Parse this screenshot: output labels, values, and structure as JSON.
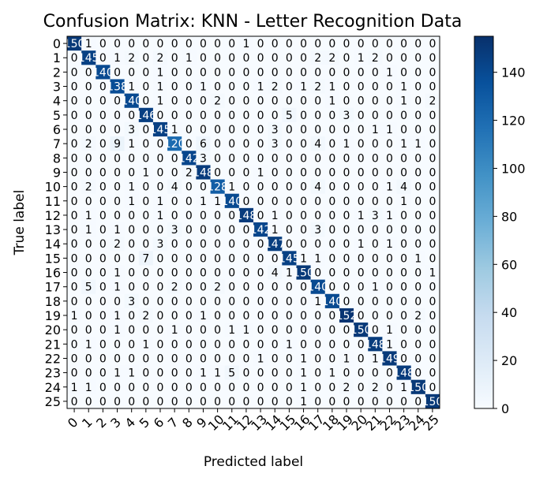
{
  "chart_data": {
    "type": "heatmap",
    "title": "Confusion Matrix: KNN - Letter Recognition Data",
    "xlabel": "Predicted label",
    "ylabel": "True label",
    "labels": [
      "0",
      "1",
      "2",
      "3",
      "4",
      "5",
      "6",
      "7",
      "8",
      "9",
      "10",
      "11",
      "12",
      "13",
      "14",
      "15",
      "16",
      "17",
      "18",
      "19",
      "20",
      "21",
      "22",
      "23",
      "24",
      "25"
    ],
    "colormap": "Blues",
    "vmin": 0,
    "vmax": 155,
    "colorbar_ticks": [
      0,
      20,
      40,
      60,
      80,
      100,
      120,
      140
    ],
    "colorbar_labels": [
      "0",
      "20",
      "40",
      "60",
      "80",
      "100",
      "120",
      "140"
    ],
    "diagonal_values": [
      150,
      145,
      140,
      138,
      140,
      146,
      145,
      120,
      142,
      148,
      128,
      140,
      148,
      142,
      147,
      145,
      150,
      140,
      140,
      152,
      150,
      148,
      149,
      148,
      150,
      150
    ],
    "matrix": [
      [
        150,
        1,
        0,
        0,
        0,
        0,
        0,
        0,
        0,
        0,
        0,
        0,
        1,
        0,
        0,
        0,
        0,
        0,
        0,
        0,
        0,
        0,
        0,
        0,
        0,
        0
      ],
      [
        0,
        145,
        0,
        1,
        2,
        0,
        2,
        0,
        1,
        0,
        0,
        0,
        0,
        0,
        0,
        0,
        0,
        2,
        2,
        0,
        1,
        2,
        0,
        0,
        0,
        0
      ],
      [
        0,
        0,
        140,
        0,
        0,
        0,
        1,
        0,
        0,
        0,
        0,
        0,
        0,
        0,
        0,
        0,
        0,
        0,
        0,
        0,
        0,
        0,
        1,
        0,
        0,
        0
      ],
      [
        0,
        0,
        0,
        138,
        1,
        0,
        1,
        0,
        0,
        1,
        0,
        0,
        0,
        1,
        2,
        0,
        1,
        2,
        1,
        0,
        0,
        0,
        0,
        1,
        0,
        0
      ],
      [
        0,
        0,
        0,
        0,
        140,
        0,
        1,
        0,
        0,
        0,
        2,
        0,
        0,
        0,
        0,
        0,
        0,
        0,
        1,
        0,
        0,
        0,
        0,
        1,
        0,
        2
      ],
      [
        0,
        0,
        0,
        0,
        0,
        146,
        0,
        0,
        0,
        0,
        0,
        0,
        0,
        0,
        0,
        5,
        0,
        0,
        0,
        3,
        0,
        0,
        0,
        0,
        0,
        0
      ],
      [
        0,
        0,
        0,
        0,
        3,
        0,
        145,
        1,
        0,
        0,
        0,
        0,
        0,
        0,
        3,
        0,
        0,
        0,
        0,
        0,
        0,
        1,
        1,
        0,
        0,
        0
      ],
      [
        0,
        2,
        0,
        9,
        1,
        0,
        0,
        120,
        0,
        6,
        0,
        0,
        0,
        0,
        3,
        0,
        0,
        4,
        0,
        1,
        0,
        0,
        0,
        1,
        1,
        0
      ],
      [
        0,
        0,
        0,
        0,
        0,
        0,
        0,
        0,
        142,
        3,
        0,
        0,
        0,
        0,
        0,
        0,
        0,
        0,
        0,
        0,
        0,
        0,
        0,
        0,
        0,
        0
      ],
      [
        0,
        0,
        0,
        0,
        0,
        1,
        0,
        0,
        2,
        148,
        0,
        0,
        0,
        1,
        0,
        0,
        0,
        0,
        0,
        0,
        0,
        0,
        0,
        0,
        0,
        0
      ],
      [
        0,
        2,
        0,
        0,
        1,
        0,
        0,
        4,
        0,
        0,
        128,
        1,
        0,
        0,
        0,
        0,
        0,
        4,
        0,
        0,
        0,
        0,
        1,
        4,
        0,
        0
      ],
      [
        0,
        0,
        0,
        0,
        1,
        0,
        1,
        0,
        0,
        1,
        1,
        140,
        0,
        0,
        0,
        0,
        0,
        0,
        0,
        0,
        0,
        0,
        0,
        1,
        0,
        0
      ],
      [
        0,
        1,
        0,
        0,
        0,
        0,
        1,
        0,
        0,
        0,
        0,
        0,
        148,
        0,
        1,
        0,
        0,
        0,
        0,
        0,
        1,
        3,
        1,
        0,
        0,
        0
      ],
      [
        0,
        1,
        0,
        1,
        0,
        0,
        0,
        3,
        0,
        0,
        0,
        0,
        0,
        142,
        1,
        0,
        0,
        3,
        0,
        0,
        0,
        0,
        0,
        0,
        0,
        0
      ],
      [
        0,
        0,
        0,
        2,
        0,
        0,
        3,
        0,
        0,
        0,
        0,
        0,
        0,
        0,
        147,
        0,
        0,
        0,
        0,
        0,
        1,
        0,
        1,
        0,
        0,
        0
      ],
      [
        0,
        0,
        0,
        0,
        0,
        7,
        0,
        0,
        0,
        0,
        0,
        0,
        0,
        0,
        0,
        145,
        1,
        1,
        0,
        0,
        0,
        0,
        0,
        0,
        1,
        0
      ],
      [
        0,
        0,
        0,
        1,
        0,
        0,
        0,
        0,
        0,
        0,
        0,
        0,
        0,
        0,
        4,
        1,
        150,
        0,
        0,
        0,
        0,
        0,
        0,
        0,
        0,
        1
      ],
      [
        0,
        5,
        0,
        1,
        0,
        0,
        0,
        2,
        0,
        0,
        2,
        0,
        0,
        0,
        0,
        0,
        0,
        140,
        0,
        0,
        0,
        1,
        0,
        0,
        0,
        0
      ],
      [
        0,
        0,
        0,
        0,
        3,
        0,
        0,
        0,
        0,
        0,
        0,
        0,
        0,
        0,
        0,
        0,
        0,
        1,
        140,
        0,
        0,
        0,
        0,
        0,
        0,
        0
      ],
      [
        1,
        0,
        0,
        1,
        0,
        2,
        0,
        0,
        0,
        1,
        0,
        0,
        0,
        0,
        0,
        0,
        0,
        0,
        0,
        152,
        0,
        0,
        0,
        0,
        2,
        0
      ],
      [
        0,
        0,
        0,
        1,
        0,
        0,
        0,
        1,
        0,
        0,
        0,
        1,
        1,
        0,
        0,
        0,
        0,
        0,
        0,
        0,
        150,
        0,
        1,
        0,
        0,
        0
      ],
      [
        0,
        1,
        0,
        0,
        0,
        1,
        0,
        0,
        0,
        0,
        0,
        0,
        0,
        0,
        0,
        1,
        0,
        0,
        0,
        0,
        0,
        148,
        1,
        0,
        0,
        0
      ],
      [
        0,
        0,
        0,
        0,
        0,
        0,
        0,
        0,
        0,
        0,
        0,
        0,
        0,
        1,
        0,
        0,
        1,
        0,
        0,
        1,
        0,
        1,
        149,
        0,
        0,
        0
      ],
      [
        0,
        0,
        0,
        1,
        1,
        0,
        0,
        0,
        0,
        1,
        1,
        5,
        0,
        0,
        0,
        0,
        1,
        0,
        1,
        0,
        0,
        0,
        0,
        148,
        0,
        0
      ],
      [
        1,
        1,
        0,
        0,
        0,
        0,
        0,
        0,
        0,
        0,
        0,
        0,
        0,
        0,
        0,
        0,
        1,
        0,
        0,
        2,
        0,
        2,
        0,
        1,
        150,
        0
      ],
      [
        0,
        0,
        0,
        0,
        0,
        0,
        0,
        0,
        0,
        0,
        0,
        0,
        0,
        0,
        0,
        0,
        1,
        0,
        0,
        0,
        0,
        0,
        0,
        0,
        0,
        150
      ]
    ]
  }
}
